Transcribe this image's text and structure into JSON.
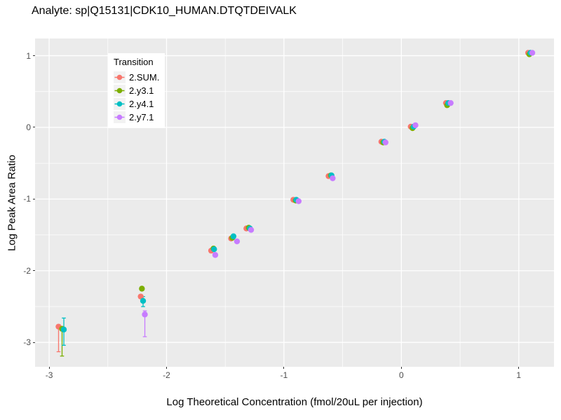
{
  "chart_data": {
    "type": "scatter",
    "title": "Analyte: sp|Q15131|CDK10_HUMAN.DTQTDEIVALK",
    "xlabel": "Log Theoretical Concentration (fmol/20uL per injection)",
    "ylabel": "Log Peak Area Ratio",
    "xlim": [
      -3.12,
      1.3
    ],
    "ylim": [
      -3.34,
      1.24
    ],
    "grid": true,
    "panel_bg": "#EBEBEB",
    "grid_color": "#FFFFFF",
    "tick_color": "#333333",
    "tick_label_color": "#4D4D4D",
    "x_ticks": [
      {
        "v": -3,
        "label": "-3"
      },
      {
        "v": -2,
        "label": "-2"
      },
      {
        "v": -1,
        "label": "-1"
      },
      {
        "v": 0,
        "label": "0"
      },
      {
        "v": 1,
        "label": "1"
      }
    ],
    "y_ticks": [
      {
        "v": 1,
        "label": "1"
      },
      {
        "v": 0,
        "label": "0"
      },
      {
        "v": -1,
        "label": "-1"
      },
      {
        "v": -2,
        "label": "-2"
      },
      {
        "v": -3,
        "label": "-3"
      }
    ],
    "x_minor": [
      -2.5,
      -1.5,
      -0.5,
      0.5
    ],
    "y_minor": [
      0.5,
      -0.5,
      -1.5,
      -2.5
    ],
    "legend_title": "Transition",
    "legend_position": "top-left-inside",
    "series": [
      {
        "name": "2.SUM.",
        "color": "#F8766D",
        "points": [
          {
            "x": -2.92,
            "y": -2.78,
            "lo": -3.13,
            "hi": -2.76
          },
          {
            "x": -2.22,
            "y": -2.36
          },
          {
            "x": -1.62,
            "y": -1.72
          },
          {
            "x": -1.45,
            "y": -1.55
          },
          {
            "x": -1.32,
            "y": -1.41
          },
          {
            "x": -0.92,
            "y": -1.01
          },
          {
            "x": -0.62,
            "y": -0.68
          },
          {
            "x": -0.17,
            "y": -0.2
          },
          {
            "x": 0.08,
            "y": 0.01
          },
          {
            "x": 0.38,
            "y": 0.34
          },
          {
            "x": 1.08,
            "y": 1.04
          }
        ]
      },
      {
        "name": "2.y3.1",
        "color": "#7CAE00",
        "points": [
          {
            "x": -2.89,
            "y": -2.81,
            "lo": -3.19,
            "hi": -2.8
          },
          {
            "x": -2.21,
            "y": -2.25
          },
          {
            "x": -1.6,
            "y": -1.69
          },
          {
            "x": -1.44,
            "y": -1.54
          },
          {
            "x": -1.3,
            "y": -1.4
          },
          {
            "x": -0.9,
            "y": -1.02
          },
          {
            "x": -0.6,
            "y": -0.67
          },
          {
            "x": -0.155,
            "y": -0.21
          },
          {
            "x": 0.095,
            "y": -0.01
          },
          {
            "x": 0.39,
            "y": 0.31
          },
          {
            "x": 1.09,
            "y": 1.02
          }
        ]
      },
      {
        "name": "2.y4.1",
        "color": "#00BFC4",
        "points": [
          {
            "x": -2.875,
            "y": -2.82,
            "lo": -3.04,
            "hi": -2.66
          },
          {
            "x": -2.2,
            "y": -2.42,
            "lo": -2.5,
            "hi": -2.36
          },
          {
            "x": -1.595,
            "y": -1.7
          },
          {
            "x": -1.43,
            "y": -1.52
          },
          {
            "x": -1.29,
            "y": -1.41
          },
          {
            "x": -0.895,
            "y": -1.01
          },
          {
            "x": -0.595,
            "y": -0.67
          },
          {
            "x": -0.145,
            "y": -0.2
          },
          {
            "x": 0.105,
            "y": 0.01
          },
          {
            "x": 0.4,
            "y": 0.34
          },
          {
            "x": 1.1,
            "y": 1.04
          }
        ]
      },
      {
        "name": "2.y7.1",
        "color": "#C77CFF",
        "points": [
          {
            "x": -2.185,
            "y": -2.61,
            "lo": -2.92,
            "hi": -2.56
          },
          {
            "x": -1.585,
            "y": -1.78
          },
          {
            "x": -1.4,
            "y": -1.59
          },
          {
            "x": -1.28,
            "y": -1.43
          },
          {
            "x": -0.875,
            "y": -1.03
          },
          {
            "x": -0.585,
            "y": -0.71
          },
          {
            "x": -0.135,
            "y": -0.21
          },
          {
            "x": 0.12,
            "y": 0.03
          },
          {
            "x": 0.42,
            "y": 0.34
          },
          {
            "x": 1.115,
            "y": 1.04
          }
        ]
      }
    ]
  }
}
